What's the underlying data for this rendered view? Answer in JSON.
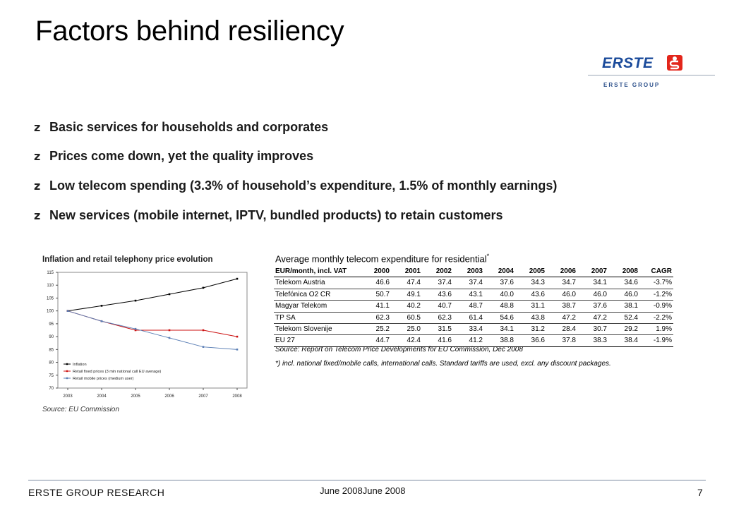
{
  "title": "Factors behind resiliency",
  "logo": {
    "word": "ERSTE",
    "group": "ERSTE GROUP",
    "brand_color": "#1b4b9b",
    "symbol_color": "#e3261b"
  },
  "bullets": [
    "Basic services for households and corporates",
    "Prices come down, yet the quality improves",
    "Low telecom spending (3.3% of household’s expenditure, 1.5% of monthly earnings)",
    "New services (mobile internet, IPTV, bundled products) to retain customers"
  ],
  "bullet_glyph": "z",
  "chart_data": {
    "type": "line",
    "title": "Inflation and retail telephony price evolution",
    "xlabel": "",
    "ylabel": "",
    "categories": [
      "2003",
      "2004",
      "2005",
      "2006",
      "2007",
      "2008"
    ],
    "ylim": [
      70,
      115
    ],
    "yticks": [
      "115",
      "110",
      "105",
      "100",
      "95",
      "90",
      "85",
      "80",
      "75",
      "70"
    ],
    "grid": false,
    "legend_position": "bottom-left",
    "series": [
      {
        "name": "Inflation",
        "values": [
          100,
          102,
          104,
          106.5,
          109,
          112.5
        ],
        "color": "#000000"
      },
      {
        "name": "Retail fixed prices (3 min national call EU average)",
        "values": [
          100,
          96,
          92.5,
          92.5,
          92.5,
          90
        ],
        "color": "#cc1111"
      },
      {
        "name": "Retail mobile prices (medium user)",
        "values": [
          100,
          96,
          93,
          89.5,
          86,
          85
        ],
        "color": "#5b7fb5"
      }
    ],
    "source": "Source: EU Commission"
  },
  "table": {
    "title": "Average monthly telecom expenditure for residential",
    "title_mark": "*",
    "headers": [
      "EUR/month, incl. VAT",
      "2000",
      "2001",
      "2002",
      "2003",
      "2004",
      "2005",
      "2006",
      "2007",
      "2008",
      "CAGR"
    ],
    "rows": [
      [
        "Telekom Austria",
        "46.6",
        "47.4",
        "37.4",
        "37.4",
        "37.6",
        "34.3",
        "34.7",
        "34.1",
        "34.6",
        "-3.7%"
      ],
      [
        "Telefónica O2 CR",
        "50.7",
        "49.1",
        "43.6",
        "43.1",
        "40.0",
        "43.6",
        "46.0",
        "46.0",
        "46.0",
        "-1.2%"
      ],
      [
        "Magyar Telekom",
        "41.1",
        "40.2",
        "40.7",
        "48.7",
        "48.8",
        "31.1",
        "38.7",
        "37.6",
        "38.1",
        "-0.9%"
      ],
      [
        "TP SA",
        "62.3",
        "60.5",
        "62.3",
        "61.4",
        "54.6",
        "43.8",
        "47.2",
        "47.2",
        "52.4",
        "-2.2%"
      ],
      [
        "Telekom Slovenije",
        "25.2",
        "25.0",
        "31.5",
        "33.4",
        "34.1",
        "31.2",
        "28.4",
        "30.7",
        "29.2",
        "1.9%"
      ],
      [
        "EU 27",
        "44.7",
        "42.4",
        "41.6",
        "41.2",
        "38.8",
        "36.6",
        "37.8",
        "38.3",
        "38.4",
        "-1.9%"
      ]
    ],
    "source": "Source: Report on Telecom Price Developments for EU Commission, Dec 2008",
    "note": "*) incl. national fixed/mobile calls, international calls. Standard tariffs are used, excl. any discount packages."
  },
  "footer": {
    "left": "ERSTE GROUP RESEARCH",
    "date": "June 2008June 2008",
    "page": "7"
  }
}
